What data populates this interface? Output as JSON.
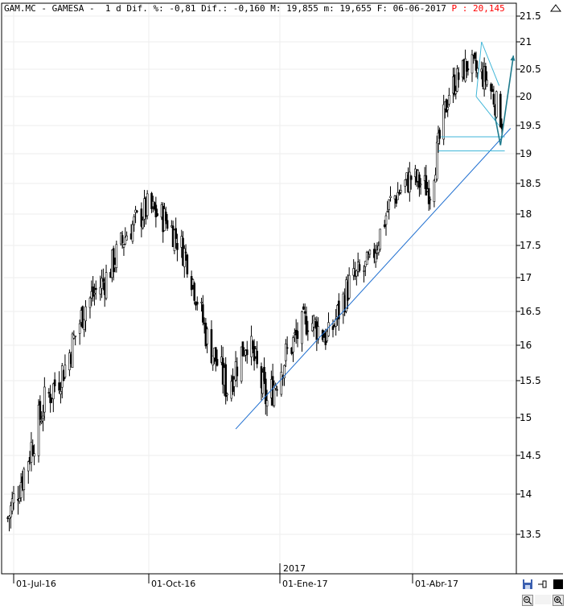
{
  "header": {
    "symbol": "GAM.MC",
    "name": "GAMESA",
    "period": "1 d",
    "dif_pct_label": "Dif. %:",
    "dif_pct": "-0,81",
    "dif_label": "Dif.:",
    "dif": "-0,160",
    "max_label": "M:",
    "max": "19,855",
    "min_label": "m:",
    "min": "19,655",
    "date_label": "F:",
    "date": "06-06-2017",
    "price_label": "P :",
    "price": "20,145"
  },
  "colors": {
    "background": "#ffffff",
    "candle": "#000000",
    "trendline": "#1f6fd0",
    "grid": "#e6e6e6",
    "price_text": "#ff0000"
  },
  "icons": [
    "up-arrow-icon",
    "save-icon",
    "pin-icon",
    "black-square-icon",
    "zoom-out-icon",
    "zoom-in-icon"
  ],
  "chart_data": {
    "type": "candlestick",
    "grid": true,
    "y_axis_position": "right",
    "ylim": [
      13,
      21.6
    ],
    "y_ticks": [
      "21.5",
      "21",
      "20.5",
      "20",
      "19.5",
      "19",
      "18.5",
      "18",
      "17.5",
      "17",
      "16.5",
      "16",
      "15.5",
      "15",
      "14.5",
      "14",
      "13.5"
    ],
    "x_ticks": [
      "01-Jul-16",
      "01-Oct-16",
      "01-Ene-17",
      "01-Abr-17"
    ],
    "year_marker": "2017",
    "x_range": [
      "2016-06-27",
      "2017-06-06"
    ],
    "series": [
      {
        "x": [
          "2016-06-27",
          "2016-07-08",
          "2016-07-22",
          "2016-08-05",
          "2016-08-19",
          "2016-09-02",
          "2016-09-16",
          "2016-09-30",
          "2016-10-14",
          "2016-10-28",
          "2016-11-11",
          "2016-11-25",
          "2016-12-09",
          "2016-12-23",
          "2017-01-06",
          "2017-01-20",
          "2017-02-03",
          "2017-02-17",
          "2017-03-03",
          "2017-03-17",
          "2017-03-31",
          "2017-04-14",
          "2017-04-28",
          "2017-05-12",
          "2017-05-26",
          "2017-06-06"
        ],
        "values": [
          13.7,
          14.3,
          15.2,
          15.7,
          16.6,
          17.0,
          17.7,
          18.1,
          17.9,
          17.3,
          16.1,
          15.4,
          16.1,
          15.2,
          15.9,
          16.4,
          16.1,
          16.9,
          17.2,
          18.2,
          18.6,
          18.4,
          20.1,
          20.6,
          20.3,
          19.6
        ]
      }
    ],
    "annotations": [
      {
        "type": "trendline",
        "from": [
          "2016-12-01",
          14.85
        ],
        "to": [
          "2017-06-12",
          19.45
        ]
      },
      {
        "type": "horizontal",
        "from": [
          "2017-04-22",
          19.3
        ],
        "to": [
          "2017-06-08",
          19.3
        ]
      },
      {
        "type": "horizontal",
        "from": [
          "2017-04-20",
          19.05
        ],
        "to": [
          "2017-06-08",
          19.05
        ]
      },
      {
        "type": "line",
        "from": [
          "2017-05-22",
          21.0
        ],
        "to": [
          "2017-06-04",
          20.2
        ]
      },
      {
        "type": "line",
        "from": [
          "2017-05-22",
          21.0
        ],
        "to": [
          "2017-05-18",
          20.0
        ]
      },
      {
        "type": "line",
        "from": [
          "2017-05-18",
          20.0
        ],
        "to": [
          "2017-06-04",
          19.5
        ]
      },
      {
        "type": "arrow",
        "from": [
          "2017-06-05",
          19.15
        ],
        "to": [
          "2017-06-14",
          20.75
        ]
      }
    ]
  }
}
